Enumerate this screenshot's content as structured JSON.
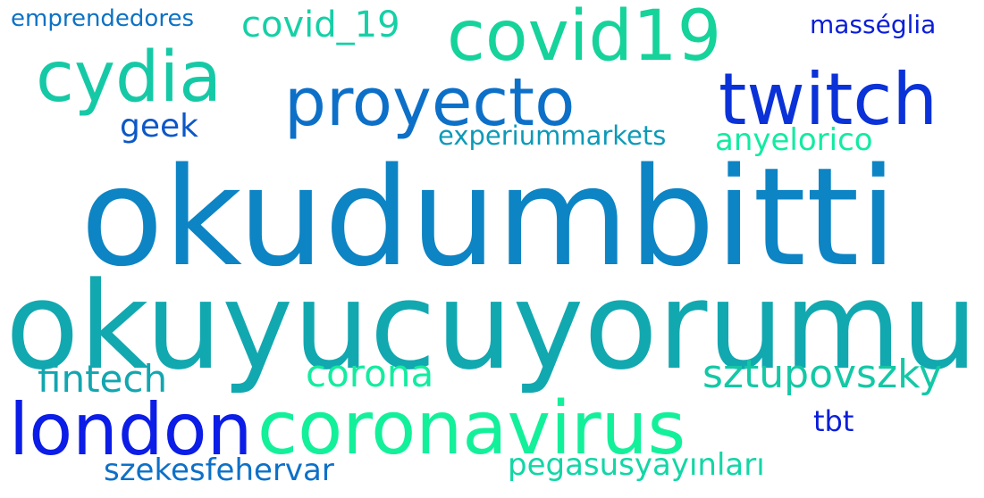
{
  "cloud": {
    "words": {
      "okudumbitti": "okudumbitti",
      "okuyucuyorumu": "okuyucuyorumu",
      "coronavirus": "coronavirus",
      "london": "london",
      "covid19": "covid19",
      "cydia": "cydia",
      "proyecto": "proyecto",
      "twitch": "twitch",
      "covid_19": "covid_19",
      "emprendedores": "emprendedores",
      "masseglia": "masséglia",
      "geek": "geek",
      "experiummarkets": "experiummarkets",
      "anyelorico": "anyelorico",
      "fintech": "fintech",
      "corona": "corona",
      "sztupovszky": "sztupovszky",
      "tbt": "tbt",
      "szekesfehervar": "szekesfehervar",
      "pegasusyayinlari": "pegasusyayınları"
    },
    "colors": {
      "background": "#ffffff",
      "deep_blue": "#0a1ed8",
      "mid_blue": "#0d84c4",
      "teal": "#12a8b0",
      "green": "#13f09a"
    }
  }
}
